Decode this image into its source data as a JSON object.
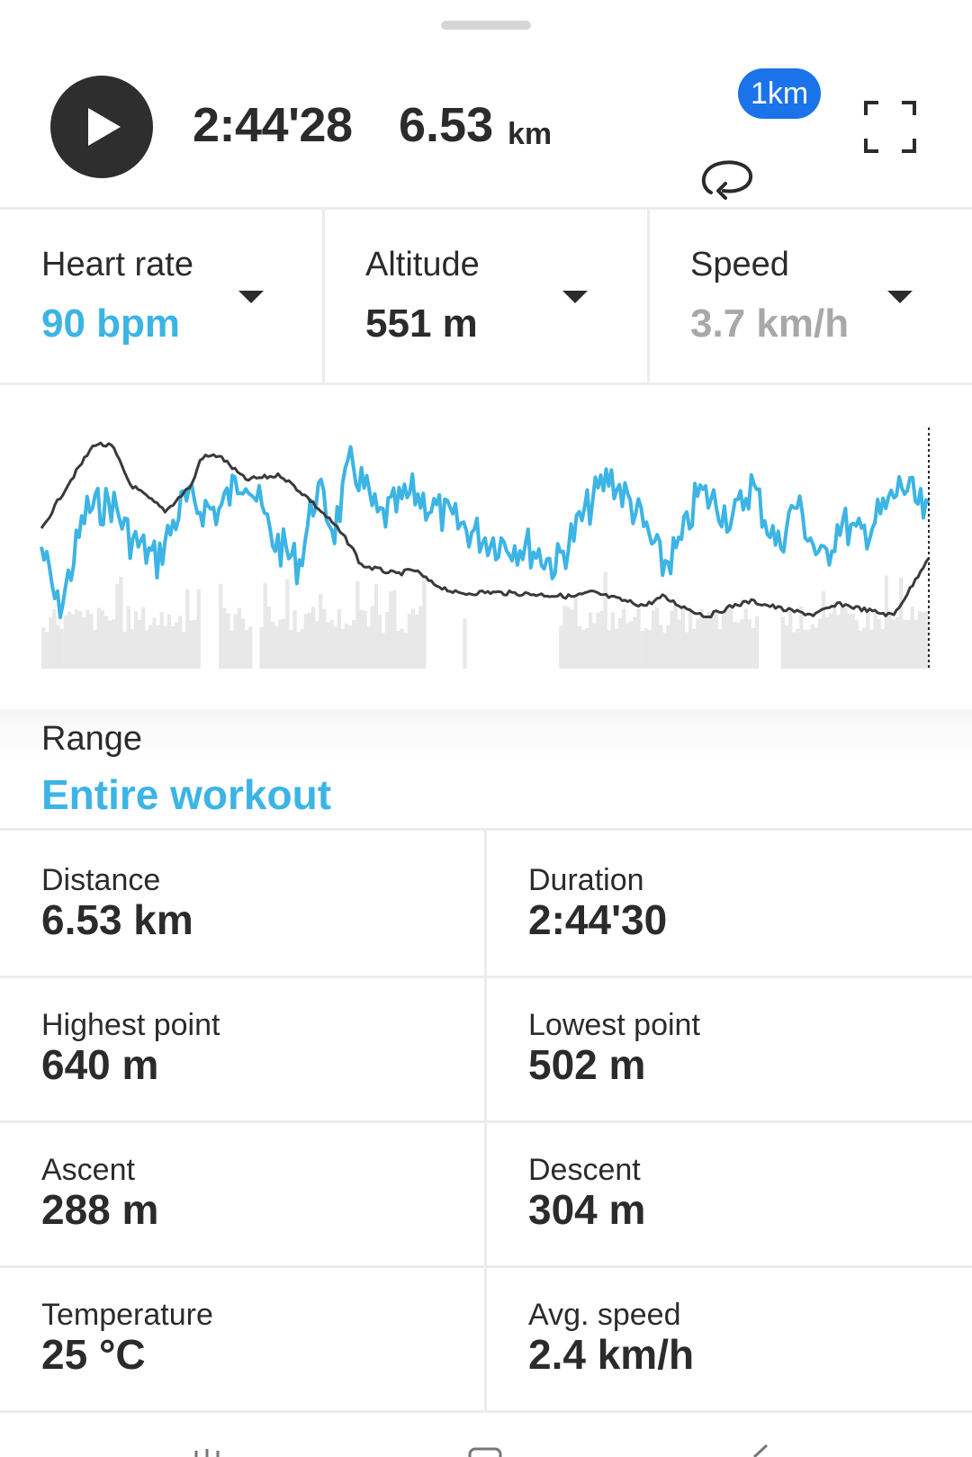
{
  "player": {
    "elapsed": "2:44'28",
    "distance": "6.53",
    "distance_unit": "km",
    "lap_badge": "1km"
  },
  "metrics": [
    {
      "label": "Heart rate",
      "value": "90 bpm",
      "color": "#3cb4e5"
    },
    {
      "label": "Altitude",
      "value": "551 m",
      "color": "#2b2b2b"
    },
    {
      "label": "Speed",
      "value": "3.7 km/h",
      "color": "#a8a8a8"
    }
  ],
  "chart_data": {
    "type": "line",
    "series": [
      {
        "name": "Heart rate",
        "color": "#3cb4e5"
      },
      {
        "name": "Altitude",
        "color": "#3a3a3a"
      },
      {
        "name": "Speed",
        "color": "#e6e6e6"
      }
    ]
  },
  "range": {
    "label": "Range",
    "value": "Entire workout"
  },
  "stats": [
    {
      "label": "Distance",
      "value": "6.53 km"
    },
    {
      "label": "Duration",
      "value": "2:44'30"
    },
    {
      "label": "Highest point",
      "value": "640 m"
    },
    {
      "label": "Lowest point",
      "value": "502 m"
    },
    {
      "label": "Ascent",
      "value": "288 m"
    },
    {
      "label": "Descent",
      "value": "304 m"
    },
    {
      "label": "Temperature",
      "value": "25 °C"
    },
    {
      "label": "Avg. speed",
      "value": "2.4 km/h"
    }
  ]
}
